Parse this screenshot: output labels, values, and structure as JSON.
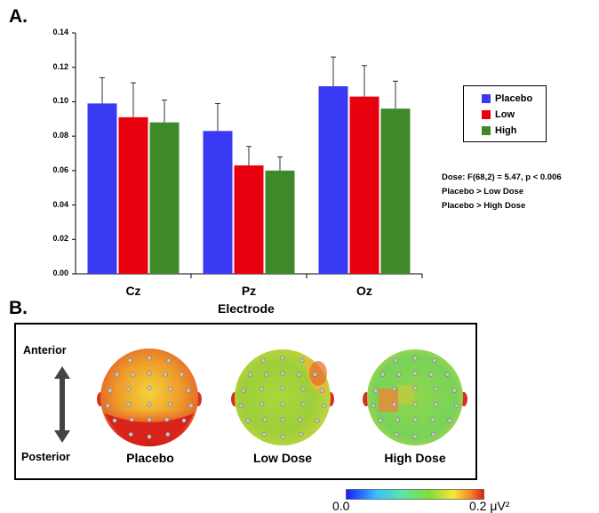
{
  "panel_a_label": "A.",
  "panel_b_label": "B.",
  "chart_data": {
    "type": "bar",
    "categories": [
      "Cz",
      "Pz",
      "Oz"
    ],
    "series": [
      {
        "name": "Placebo",
        "color": "#3a3af5",
        "values": [
          0.099,
          0.083,
          0.109
        ],
        "errors": [
          0.015,
          0.016,
          0.017
        ]
      },
      {
        "name": "Low",
        "color": "#e8000f",
        "values": [
          0.091,
          0.063,
          0.103
        ],
        "errors": [
          0.02,
          0.011,
          0.018
        ]
      },
      {
        "name": "High",
        "color": "#3e8a2a",
        "values": [
          0.088,
          0.06,
          0.096
        ],
        "errors": [
          0.013,
          0.008,
          0.016
        ]
      }
    ],
    "xlabel": "Electrode",
    "ylabel": "",
    "ylim": [
      0,
      0.14
    ],
    "yticks": [
      "0.00",
      "0.02",
      "0.04",
      "0.06",
      "0.08",
      "0.10",
      "0.12",
      "0.14"
    ],
    "legend_position": "right",
    "grid": false
  },
  "stats": {
    "line1": "Dose: F(68,2) = 5.47, p < 0.006",
    "line2": "Placebo > Low Dose",
    "line3": "Placebo > High Dose"
  },
  "topomap": {
    "anterior_label": "Anterior",
    "posterior_label": "Posterior",
    "maps": [
      {
        "label": "Placebo"
      },
      {
        "label": "Low Dose"
      },
      {
        "label": "High Dose"
      }
    ],
    "colorbar": {
      "min_label": "0.0",
      "max_label": "0.2 μV²"
    }
  }
}
